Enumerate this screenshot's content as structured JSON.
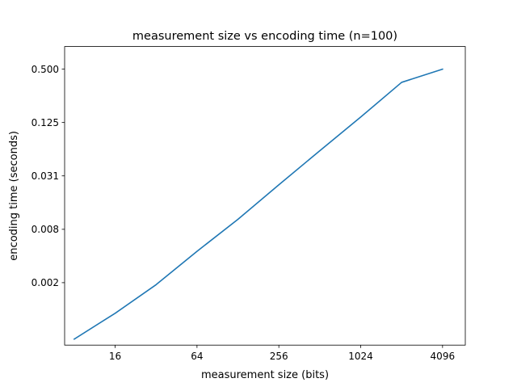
{
  "chart_data": {
    "type": "line",
    "title": "measurement size vs encoding time (n=100)",
    "xlabel": "measurement size (bits)",
    "ylabel": "encoding time (seconds)",
    "x_scale": "log2",
    "y_scale": "log2",
    "xlim": [
      6.8,
      6022
    ],
    "ylim": [
      0.000385,
      0.9
    ],
    "x_ticks": [
      16,
      64,
      256,
      1024,
      4096
    ],
    "x_tick_labels": [
      "16",
      "64",
      "256",
      "1024",
      "4096"
    ],
    "y_ticks": [
      0.00195,
      0.0078,
      0.03125,
      0.125,
      0.5
    ],
    "y_tick_labels": [
      "0.002",
      "0.008",
      "0.031",
      "0.125",
      "0.500"
    ],
    "grid": false,
    "series": [
      {
        "color": "#1f77b4",
        "x": [
          8,
          16,
          32,
          64,
          128,
          256,
          512,
          1024,
          2048,
          4096
        ],
        "y": [
          0.00045,
          0.00088,
          0.00185,
          0.0044,
          0.0101,
          0.0248,
          0.06,
          0.144,
          0.355,
          0.5
        ]
      }
    ]
  }
}
